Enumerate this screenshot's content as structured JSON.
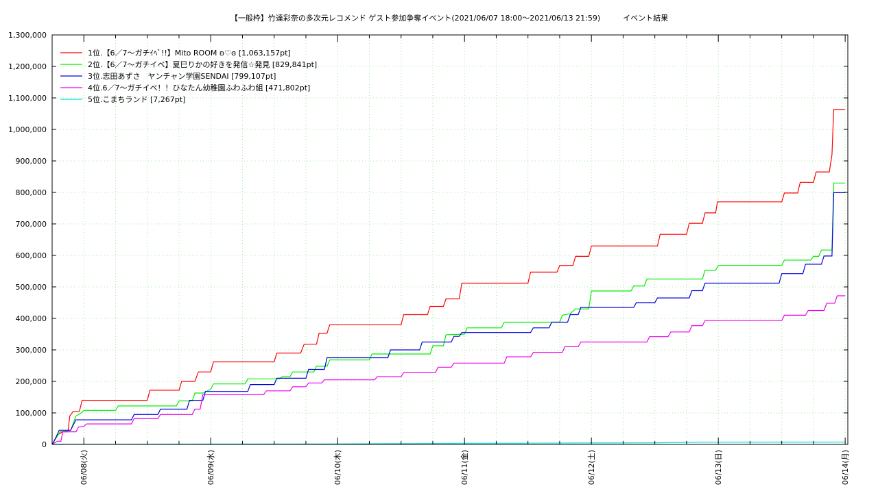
{
  "chart_data": {
    "type": "line",
    "title": "【一般枠】竹達彩奈の多次元レコメンド ゲスト参加争奪イベント(2021/06/07 18:00〜2021/06/13 21:59)　　　イベント結果",
    "ylim": [
      0,
      1300000
    ],
    "yticks": [
      "0",
      "100,000",
      "200,000",
      "300,000",
      "400,000",
      "500,000",
      "600,000",
      "700,000",
      "800,000",
      "900,000",
      "1,000,000",
      "1,100,000",
      "1,200,000",
      "1,300,000"
    ],
    "xlim": [
      "2021-06-07 18:00",
      "2021-06-14 00:30"
    ],
    "xticks": [
      {
        "label": "06/08(火)",
        "t": "2021-06-08 00:00"
      },
      {
        "label": "06/09(水)",
        "t": "2021-06-09 00:00"
      },
      {
        "label": "06/10(木)",
        "t": "2021-06-10 00:00"
      },
      {
        "label": "06/11(金)",
        "t": "2021-06-11 00:00"
      },
      {
        "label": "06/12(土)",
        "t": "2021-06-12 00:00"
      },
      {
        "label": "06/13(日)",
        "t": "2021-06-13 00:00"
      },
      {
        "label": "06/14(月)",
        "t": "2021-06-14 00:00"
      }
    ],
    "grid": true,
    "legend_position": "top-left",
    "series": [
      {
        "name": "1位.【6／7〜ガチｲﾍﾞ!!】Mito ROOM ʚ♡ɞ [1,063,157pt]",
        "color": "#ff0000",
        "points": [
          [
            "2021-06-07 18:00",
            0
          ],
          [
            "2021-06-07 19:00",
            30000
          ],
          [
            "2021-06-07 20:00",
            40000
          ],
          [
            "2021-06-07 21:00",
            40000
          ],
          [
            "2021-06-07 21:20",
            90000
          ],
          [
            "2021-06-07 22:00",
            105000
          ],
          [
            "2021-06-07 23:10",
            105000
          ],
          [
            "2021-06-07 23:40",
            140000
          ],
          [
            "2021-06-08 12:00",
            140000
          ],
          [
            "2021-06-08 12:30",
            172000
          ],
          [
            "2021-06-08 18:00",
            172000
          ],
          [
            "2021-06-08 18:30",
            200000
          ],
          [
            "2021-06-08 21:00",
            200000
          ],
          [
            "2021-06-08 21:40",
            230000
          ],
          [
            "2021-06-09 00:00",
            230000
          ],
          [
            "2021-06-09 00:30",
            262000
          ],
          [
            "2021-06-09 12:00",
            262000
          ],
          [
            "2021-06-09 12:30",
            290000
          ],
          [
            "2021-06-09 17:00",
            290000
          ],
          [
            "2021-06-09 17:40",
            318000
          ],
          [
            "2021-06-09 20:00",
            318000
          ],
          [
            "2021-06-09 20:30",
            353000
          ],
          [
            "2021-06-09 22:00",
            353000
          ],
          [
            "2021-06-09 22:30",
            380000
          ],
          [
            "2021-06-10 12:00",
            380000
          ],
          [
            "2021-06-10 12:30",
            412000
          ],
          [
            "2021-06-10 17:00",
            412000
          ],
          [
            "2021-06-10 17:30",
            438000
          ],
          [
            "2021-06-10 20:00",
            438000
          ],
          [
            "2021-06-10 20:30",
            462000
          ],
          [
            "2021-06-10 23:00",
            462000
          ],
          [
            "2021-06-10 23:30",
            512000
          ],
          [
            "2021-06-11 12:00",
            512000
          ],
          [
            "2021-06-11 12:30",
            547000
          ],
          [
            "2021-06-11 17:30",
            547000
          ],
          [
            "2021-06-11 18:00",
            568000
          ],
          [
            "2021-06-11 20:30",
            568000
          ],
          [
            "2021-06-11 21:00",
            597000
          ],
          [
            "2021-06-11 23:30",
            597000
          ],
          [
            "2021-06-12 00:00",
            630000
          ],
          [
            "2021-06-12 12:30",
            630000
          ],
          [
            "2021-06-12 13:00",
            667000
          ],
          [
            "2021-06-12 18:00",
            667000
          ],
          [
            "2021-06-12 18:30",
            702000
          ],
          [
            "2021-06-12 21:00",
            702000
          ],
          [
            "2021-06-12 21:30",
            735000
          ],
          [
            "2021-06-12 23:30",
            735000
          ],
          [
            "2021-06-12 23:50",
            770000
          ],
          [
            "2021-06-13 12:00",
            770000
          ],
          [
            "2021-06-13 12:30",
            798000
          ],
          [
            "2021-06-13 15:00",
            798000
          ],
          [
            "2021-06-13 15:30",
            832000
          ],
          [
            "2021-06-13 18:00",
            832000
          ],
          [
            "2021-06-13 18:30",
            865000
          ],
          [
            "2021-06-13 21:00",
            865000
          ],
          [
            "2021-06-13 21:30",
            920000
          ],
          [
            "2021-06-13 21:50",
            1063157
          ],
          [
            "2021-06-14 00:00",
            1063157
          ]
        ]
      },
      {
        "name": "2位.【6／7〜ガチイベ】夏巳りかの好きを発信☆発見 [829,841pt]",
        "color": "#00ee00",
        "points": [
          [
            "2021-06-07 18:00",
            0
          ],
          [
            "2021-06-07 19:30",
            40000
          ],
          [
            "2021-06-07 21:30",
            45000
          ],
          [
            "2021-06-07 22:30",
            90000
          ],
          [
            "2021-06-07 23:30",
            100000
          ],
          [
            "2021-06-08 00:00",
            108000
          ],
          [
            "2021-06-08 06:00",
            108000
          ],
          [
            "2021-06-08 06:30",
            122000
          ],
          [
            "2021-06-08 17:30",
            122000
          ],
          [
            "2021-06-08 18:00",
            138000
          ],
          [
            "2021-06-08 20:30",
            138000
          ],
          [
            "2021-06-08 21:00",
            163000
          ],
          [
            "2021-06-08 22:30",
            163000
          ],
          [
            "2021-06-09 00:00",
            175000
          ],
          [
            "2021-06-09 00:30",
            192000
          ],
          [
            "2021-06-09 06:30",
            192000
          ],
          [
            "2021-06-09 07:00",
            208000
          ],
          [
            "2021-06-09 13:00",
            208000
          ],
          [
            "2021-06-09 13:30",
            215000
          ],
          [
            "2021-06-09 15:00",
            215000
          ],
          [
            "2021-06-09 15:30",
            230000
          ],
          [
            "2021-06-09 19:30",
            230000
          ],
          [
            "2021-06-09 20:00",
            248000
          ],
          [
            "2021-06-09 22:00",
            248000
          ],
          [
            "2021-06-09 22:30",
            268000
          ],
          [
            "2021-06-10 06:00",
            268000
          ],
          [
            "2021-06-10 06:30",
            287000
          ],
          [
            "2021-06-10 17:30",
            287000
          ],
          [
            "2021-06-10 18:00",
            313000
          ],
          [
            "2021-06-10 20:00",
            313000
          ],
          [
            "2021-06-10 20:30",
            348000
          ],
          [
            "2021-06-11 00:00",
            350000
          ],
          [
            "2021-06-11 00:30",
            370000
          ],
          [
            "2021-06-11 07:00",
            370000
          ],
          [
            "2021-06-11 07:30",
            388000
          ],
          [
            "2021-06-11 18:00",
            388000
          ],
          [
            "2021-06-11 18:30",
            410000
          ],
          [
            "2021-06-11 20:00",
            415000
          ],
          [
            "2021-06-11 21:00",
            430000
          ],
          [
            "2021-06-11 23:30",
            430000
          ],
          [
            "2021-06-12 00:00",
            487000
          ],
          [
            "2021-06-12 07:30",
            487000
          ],
          [
            "2021-06-12 08:00",
            503000
          ],
          [
            "2021-06-12 10:00",
            503000
          ],
          [
            "2021-06-12 10:30",
            525000
          ],
          [
            "2021-06-12 21:00",
            525000
          ],
          [
            "2021-06-12 21:30",
            553000
          ],
          [
            "2021-06-12 23:30",
            553000
          ],
          [
            "2021-06-13 00:00",
            568000
          ],
          [
            "2021-06-13 12:00",
            568000
          ],
          [
            "2021-06-13 12:30",
            585000
          ],
          [
            "2021-06-13 17:30",
            585000
          ],
          [
            "2021-06-13 18:00",
            597000
          ],
          [
            "2021-06-13 19:00",
            597000
          ],
          [
            "2021-06-13 19:30",
            617000
          ],
          [
            "2021-06-13 21:30",
            617000
          ],
          [
            "2021-06-13 21:50",
            829841
          ],
          [
            "2021-06-14 00:00",
            829841
          ]
        ]
      },
      {
        "name": "3位.志田あずさ　ヤンチャン学園SENDAI [799,107pt]",
        "color": "#0000dd",
        "points": [
          [
            "2021-06-07 18:00",
            0
          ],
          [
            "2021-06-07 18:40",
            20000
          ],
          [
            "2021-06-07 19:20",
            45000
          ],
          [
            "2021-06-07 21:30",
            45000
          ],
          [
            "2021-06-07 22:30",
            78000
          ],
          [
            "2021-06-08 09:00",
            78000
          ],
          [
            "2021-06-08 09:30",
            95000
          ],
          [
            "2021-06-08 14:00",
            95000
          ],
          [
            "2021-06-08 14:30",
            112000
          ],
          [
            "2021-06-08 19:30",
            112000
          ],
          [
            "2021-06-08 20:00",
            140000
          ],
          [
            "2021-06-08 22:30",
            140000
          ],
          [
            "2021-06-08 23:00",
            168000
          ],
          [
            "2021-06-09 07:00",
            168000
          ],
          [
            "2021-06-09 07:30",
            190000
          ],
          [
            "2021-06-09 12:00",
            190000
          ],
          [
            "2021-06-09 12:30",
            210000
          ],
          [
            "2021-06-09 18:00",
            210000
          ],
          [
            "2021-06-09 18:30",
            238000
          ],
          [
            "2021-06-09 21:30",
            238000
          ],
          [
            "2021-06-09 22:00",
            275000
          ],
          [
            "2021-06-10 09:30",
            275000
          ],
          [
            "2021-06-10 10:00",
            300000
          ],
          [
            "2021-06-10 15:30",
            300000
          ],
          [
            "2021-06-10 16:00",
            325000
          ],
          [
            "2021-06-10 21:30",
            325000
          ],
          [
            "2021-06-10 22:00",
            343000
          ],
          [
            "2021-06-10 23:00",
            343000
          ],
          [
            "2021-06-10 23:30",
            355000
          ],
          [
            "2021-06-11 12:30",
            355000
          ],
          [
            "2021-06-11 13:00",
            370000
          ],
          [
            "2021-06-11 16:00",
            370000
          ],
          [
            "2021-06-11 16:30",
            388000
          ],
          [
            "2021-06-11 19:30",
            388000
          ],
          [
            "2021-06-11 20:00",
            412000
          ],
          [
            "2021-06-11 21:30",
            412000
          ],
          [
            "2021-06-11 22:00",
            435000
          ],
          [
            "2021-06-12 08:00",
            435000
          ],
          [
            "2021-06-12 08:30",
            450000
          ],
          [
            "2021-06-12 12:00",
            450000
          ],
          [
            "2021-06-12 12:30",
            465000
          ],
          [
            "2021-06-12 18:30",
            465000
          ],
          [
            "2021-06-12 19:00",
            488000
          ],
          [
            "2021-06-12 21:00",
            488000
          ],
          [
            "2021-06-12 21:30",
            512000
          ],
          [
            "2021-06-13 11:30",
            512000
          ],
          [
            "2021-06-13 12:00",
            542000
          ],
          [
            "2021-06-13 16:00",
            542000
          ],
          [
            "2021-06-13 16:30",
            572000
          ],
          [
            "2021-06-13 19:30",
            572000
          ],
          [
            "2021-06-13 20:00",
            598000
          ],
          [
            "2021-06-13 21:30",
            598000
          ],
          [
            "2021-06-13 21:50",
            799107
          ],
          [
            "2021-06-14 00:00",
            799107
          ]
        ]
      },
      {
        "name": "4位.6／7〜ガチイベ！！ひなたん幼稚園ふわふわ組 [471,802pt]",
        "color": "#ee00ee",
        "points": [
          [
            "2021-06-07 18:00",
            0
          ],
          [
            "2021-06-07 19:00",
            10000
          ],
          [
            "2021-06-07 19:40",
            10000
          ],
          [
            "2021-06-07 20:00",
            40000
          ],
          [
            "2021-06-07 22:30",
            40000
          ],
          [
            "2021-06-07 23:00",
            55000
          ],
          [
            "2021-06-08 00:00",
            57000
          ],
          [
            "2021-06-08 00:30",
            65000
          ],
          [
            "2021-06-08 09:00",
            65000
          ],
          [
            "2021-06-08 09:30",
            82000
          ],
          [
            "2021-06-08 14:00",
            82000
          ],
          [
            "2021-06-08 14:30",
            95000
          ],
          [
            "2021-06-08 20:30",
            95000
          ],
          [
            "2021-06-08 21:00",
            112000
          ],
          [
            "2021-06-08 22:00",
            112000
          ],
          [
            "2021-06-08 22:30",
            158000
          ],
          [
            "2021-06-09 10:00",
            158000
          ],
          [
            "2021-06-09 10:30",
            170000
          ],
          [
            "2021-06-09 15:00",
            170000
          ],
          [
            "2021-06-09 15:30",
            183000
          ],
          [
            "2021-06-09 18:00",
            183000
          ],
          [
            "2021-06-09 18:30",
            195000
          ],
          [
            "2021-06-09 21:00",
            195000
          ],
          [
            "2021-06-09 21:30",
            205000
          ],
          [
            "2021-06-10 07:00",
            205000
          ],
          [
            "2021-06-10 07:30",
            215000
          ],
          [
            "2021-06-10 12:00",
            215000
          ],
          [
            "2021-06-10 12:30",
            228000
          ],
          [
            "2021-06-10 18:30",
            228000
          ],
          [
            "2021-06-10 19:00",
            245000
          ],
          [
            "2021-06-10 21:30",
            245000
          ],
          [
            "2021-06-10 22:00",
            258000
          ],
          [
            "2021-06-11 07:30",
            258000
          ],
          [
            "2021-06-11 08:00",
            278000
          ],
          [
            "2021-06-11 12:30",
            278000
          ],
          [
            "2021-06-11 13:00",
            292000
          ],
          [
            "2021-06-11 18:30",
            292000
          ],
          [
            "2021-06-11 19:00",
            310000
          ],
          [
            "2021-06-11 21:30",
            310000
          ],
          [
            "2021-06-11 22:00",
            325000
          ],
          [
            "2021-06-12 10:30",
            325000
          ],
          [
            "2021-06-12 11:00",
            342000
          ],
          [
            "2021-06-12 14:30",
            342000
          ],
          [
            "2021-06-12 15:00",
            357000
          ],
          [
            "2021-06-12 18:30",
            357000
          ],
          [
            "2021-06-12 19:00",
            377000
          ],
          [
            "2021-06-12 21:00",
            377000
          ],
          [
            "2021-06-12 21:30",
            393000
          ],
          [
            "2021-06-13 12:00",
            393000
          ],
          [
            "2021-06-13 12:30",
            410000
          ],
          [
            "2021-06-13 16:30",
            410000
          ],
          [
            "2021-06-13 17:00",
            425000
          ],
          [
            "2021-06-13 20:00",
            425000
          ],
          [
            "2021-06-13 20:30",
            448000
          ],
          [
            "2021-06-13 22:00",
            448000
          ],
          [
            "2021-06-13 22:30",
            471802
          ],
          [
            "2021-06-14 00:00",
            471802
          ]
        ]
      },
      {
        "name": "5位.こまちランド [7,267pt]",
        "color": "#00e0e0",
        "points": [
          [
            "2021-06-07 18:00",
            0
          ],
          [
            "2021-06-08 06:00",
            500
          ],
          [
            "2021-06-09 00:00",
            1000
          ],
          [
            "2021-06-10 00:00",
            1500
          ],
          [
            "2021-06-10 23:00",
            3500
          ],
          [
            "2021-06-11 12:00",
            4000
          ],
          [
            "2021-06-12 00:00",
            4500
          ],
          [
            "2021-06-12 12:00",
            5000
          ],
          [
            "2021-06-12 18:00",
            6500
          ],
          [
            "2021-06-13 00:00",
            7000
          ],
          [
            "2021-06-14 00:00",
            7267
          ]
        ]
      }
    ]
  }
}
